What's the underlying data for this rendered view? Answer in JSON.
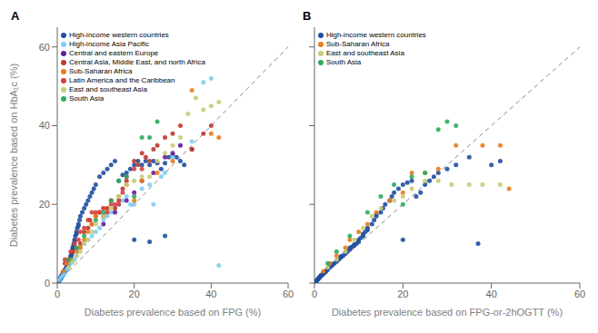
{
  "chart_data": [
    {
      "type": "scatter",
      "title": "A",
      "x_label": "Diabetes prevalence based on FPG (%)",
      "y_label": "Diabetes prevalence based on HbA₁c (%)",
      "xlim": [
        0,
        60
      ],
      "ylim": [
        0,
        65
      ],
      "xticks": [
        0,
        20,
        40,
        60
      ],
      "yticks": [
        0,
        20,
        40,
        60
      ],
      "legend": "upper left",
      "identity_line": {
        "x": [
          0,
          62
        ],
        "y": [
          0,
          62
        ],
        "color": "#888888",
        "line_style": "dashed"
      },
      "series": [
        {
          "name": "High-income western countries",
          "color": "#1f4fa0",
          "x": [
            0.3,
            0.4,
            0.5,
            0.5,
            0.6,
            0.6,
            0.7,
            0.7,
            0.8,
            0.8,
            0.9,
            0.9,
            1.0,
            1.0,
            1.0,
            1.1,
            1.1,
            1.2,
            1.2,
            1.3,
            1.3,
            1.4,
            1.4,
            1.5,
            1.5,
            1.5,
            1.6,
            1.6,
            1.7,
            1.7,
            1.8,
            1.8,
            1.9,
            2.0,
            2.0,
            2.0,
            2.1,
            2.1,
            2.2,
            2.2,
            2.3,
            2.3,
            2.4,
            2.4,
            2.5,
            2.5,
            2.6,
            2.6,
            2.7,
            2.8,
            2.8,
            2.9,
            3.0,
            3.0,
            3.0,
            3.1,
            3.2,
            3.2,
            3.3,
            3.4,
            3.5,
            3.5,
            3.6,
            3.7,
            3.8,
            3.9,
            4.0,
            4.0,
            4.2,
            4.3,
            4.5,
            4.5,
            4.7,
            5.0,
            5.0,
            5.2,
            5.5,
            5.5,
            5.8,
            6.0,
            6.5,
            7.0,
            7.5,
            8.0,
            8.5,
            9.0,
            9.5,
            10.0,
            11.0,
            12.0,
            13.0,
            14.0,
            15.0,
            16.0,
            17.0,
            18.0,
            19.0,
            20.0,
            21.0,
            22.0,
            23.0,
            24.0,
            25.0,
            26.0,
            27.0,
            28.0,
            29.0,
            30.0,
            31.0,
            32.0,
            33.0,
            24.0,
            20.0,
            28.0
          ],
          "y": [
            0.4,
            0.5,
            0.6,
            0.8,
            0.9,
            1.0,
            1.0,
            1.2,
            1.1,
            1.3,
            1.2,
            1.4,
            1.3,
            1.5,
            1.7,
            1.6,
            1.8,
            1.7,
            2.0,
            1.9,
            2.1,
            2.0,
            2.2,
            2.1,
            2.3,
            2.5,
            2.4,
            2.6,
            2.5,
            2.7,
            2.6,
            2.9,
            2.8,
            3.0,
            3.2,
            3.4,
            3.1,
            3.3,
            3.2,
            3.5,
            3.4,
            3.7,
            3.6,
            3.9,
            3.8,
            4.1,
            4.0,
            4.3,
            4.2,
            4.5,
            4.7,
            4.6,
            5.0,
            5.2,
            5.4,
            5.3,
            5.6,
            5.8,
            6.0,
            6.2,
            6.5,
            6.8,
            7.0,
            7.3,
            7.8,
            8.0,
            8.5,
            9.0,
            9.5,
            10.0,
            10.5,
            11.0,
            12.0,
            12.5,
            13.0,
            14.0,
            14.5,
            15.0,
            16.0,
            17.0,
            18.0,
            19.0,
            20.0,
            21.0,
            22.0,
            23.0,
            24.0,
            25.0,
            27.0,
            28.0,
            29.0,
            30.0,
            31.0,
            26.0,
            27.5,
            28.0,
            29.0,
            30.0,
            31.0,
            30.0,
            31.0,
            30.0,
            31.0,
            30.5,
            29.0,
            30.5,
            32.0,
            32.5,
            32.0,
            31.0,
            30.0,
            10.5,
            11.0,
            12.0
          ]
        },
        {
          "name": "High-income Asia Pacific",
          "color": "#7ecef4",
          "x": [
            0.5,
            1.0,
            1.5,
            2.0,
            2.5,
            3.0,
            3.5,
            4.0,
            4.5,
            5.0,
            5.5,
            6.0,
            7.0,
            8.0,
            9.0,
            10.0,
            11.0,
            12.0,
            13.0,
            14.0,
            15.0,
            16.0,
            17.0,
            18.0,
            19.0,
            20.0,
            22.0,
            24.0,
            25.0,
            27.0,
            28.0,
            30.0,
            32.0,
            35.0,
            38.0,
            40.0,
            42.0
          ],
          "y": [
            0.8,
            1.5,
            2.0,
            2.5,
            3.5,
            4.0,
            5.0,
            5.5,
            6.0,
            7.0,
            8.0,
            9.0,
            10.0,
            11.0,
            12.0,
            13.0,
            14.0,
            16.0,
            17.0,
            18.0,
            19.0,
            20.0,
            21.0,
            22.0,
            20.0,
            20.0,
            24.0,
            25.0,
            20.0,
            27.0,
            28.0,
            32.0,
            35.0,
            36.0,
            51.0,
            52.0,
            4.5
          ]
        },
        {
          "name": "Central and eastern Europe",
          "color": "#6a1a9a",
          "x": [
            12.0,
            15.0,
            18.0,
            20.0,
            22.0,
            25.0,
            28.0,
            30.0,
            32.0,
            35.0
          ],
          "y": [
            15.0,
            18.0,
            21.0,
            23.0,
            26.0,
            28.0,
            32.0,
            33.0,
            35.0,
            34.0
          ]
        },
        {
          "name": "Central Asia, Middle East, and north Africa",
          "color": "#c0392b",
          "x": [
            2.0,
            3.0,
            4.0,
            5.0,
            6.0,
            7.0,
            8.0,
            8.5,
            9.0,
            10.0,
            11.0,
            12.0,
            13.0,
            14.0,
            15.0,
            16.0,
            17.0,
            18.0,
            20.0,
            21.0,
            22.0,
            23.0,
            24.0,
            25.0,
            26.0,
            28.0,
            30.0,
            32.0,
            35.0,
            38.0,
            40.0
          ],
          "y": [
            5.0,
            6.0,
            8.0,
            9.0,
            10.0,
            13.0,
            14.0,
            16.0,
            15.0,
            17.0,
            18.0,
            17.0,
            19.0,
            21.0,
            19.0,
            21.0,
            24.0,
            26.0,
            31.0,
            30.0,
            33.0,
            32.0,
            31.0,
            34.0,
            35.0,
            37.0,
            38.0,
            40.0,
            34.0,
            38.0,
            40.0
          ]
        },
        {
          "name": "Sub-Saharan Africa",
          "color": "#e87c1e",
          "x": [
            1.5,
            2.5,
            3.5,
            5.0,
            6.0,
            7.0,
            8.0,
            9.0,
            10.0,
            12.0,
            14.0,
            16.0,
            18.0,
            20.0,
            22.0,
            26.0,
            30.0,
            35.0,
            40.0,
            42.0
          ],
          "y": [
            3.0,
            5.0,
            6.0,
            8.0,
            9.0,
            11.0,
            13.0,
            15.0,
            17.0,
            19.0,
            21.0,
            22.0,
            25.0,
            21.0,
            26.0,
            28.0,
            31.0,
            49.0,
            38.0,
            37.0
          ]
        },
        {
          "name": "Latin America and the Caribbean",
          "color": "#d44040",
          "x": [
            2.0,
            3.5,
            4.5,
            5.5,
            6.0,
            7.0,
            8.0,
            9.0,
            10.0,
            11.0,
            12.0,
            13.0,
            14.0,
            15.0,
            16.0,
            17.0,
            18.0,
            20.0,
            22.0
          ],
          "y": [
            6.0,
            8.0,
            10.0,
            11.0,
            13.0,
            14.0,
            16.0,
            18.0,
            18.0,
            18.0,
            19.0,
            18.0,
            20.0,
            20.0,
            20.0,
            23.0,
            27.0,
            29.0,
            29.0
          ]
        },
        {
          "name": "East and southeast Asia",
          "color": "#c8cc7a",
          "x": [
            3.0,
            4.0,
            5.0,
            6.0,
            7.0,
            8.0,
            9.0,
            10.0,
            12.0,
            14.0,
            16.0,
            18.0,
            20.0,
            22.0,
            24.0,
            26.0,
            28.0,
            30.0,
            32.0,
            34.0,
            36.0,
            38.0,
            40.0,
            42.0
          ],
          "y": [
            4.0,
            5.5,
            7.0,
            8.0,
            10.0,
            11.0,
            13.0,
            15.0,
            17.0,
            19.0,
            22.0,
            25.0,
            26.0,
            27.0,
            27.0,
            31.0,
            33.0,
            35.0,
            37.0,
            43.0,
            47.0,
            44.0,
            45.0,
            46.0
          ]
        },
        {
          "name": "South Asia",
          "color": "#2eab5e",
          "x": [
            3.0,
            5.0,
            7.0,
            10.0,
            12.0,
            14.0,
            16.0,
            18.0,
            20.0,
            22.0,
            24.0,
            26.0
          ],
          "y": [
            6.0,
            9.0,
            12.0,
            16.0,
            18.0,
            21.0,
            26.0,
            27.0,
            22.0,
            37.0,
            37.0,
            41.0
          ]
        }
      ]
    },
    {
      "type": "scatter",
      "title": "B",
      "x_label": "Diabetes prevalence based on FPG-or-2hOGTT (%)",
      "xlim": [
        0,
        60
      ],
      "ylim": [
        0,
        65
      ],
      "xticks": [
        0,
        20,
        40,
        60
      ],
      "yticks": [
        0,
        20,
        40,
        60
      ],
      "tick_labels": "x",
      "legend": "upper left",
      "identity_line": {
        "x": [
          0,
          62
        ],
        "y": [
          0,
          62
        ],
        "color": "#888888",
        "line_style": "dashed"
      },
      "series": [
        {
          "name": "High-income western countries",
          "color": "#1f4fa0",
          "x": [
            0.3,
            0.5,
            0.5,
            0.7,
            0.8,
            1.0,
            1.0,
            1.2,
            1.3,
            1.5,
            1.5,
            1.7,
            2.0,
            2.0,
            2.2,
            2.5,
            2.5,
            2.8,
            3.0,
            3.0,
            3.5,
            3.5,
            4.0,
            4.0,
            4.5,
            5.0,
            5.0,
            5.5,
            6.0,
            6.0,
            6.5,
            7.0,
            7.0,
            7.5,
            8.0,
            8.0,
            8.5,
            9.0,
            9.0,
            9.5,
            10.0,
            10.0,
            10.5,
            11.0,
            11.0,
            11.5,
            12.0,
            12.0,
            13.0,
            13.5,
            14.0,
            14.0,
            15.0,
            15.5,
            16.0,
            17.0,
            17.5,
            18.0,
            19.0,
            20.0,
            21.0,
            22.0,
            23.0,
            24.0,
            25.0,
            26.0,
            27.0,
            28.0,
            30.0,
            32.0,
            35.0,
            37.0,
            40.0,
            42.0,
            20.0
          ],
          "y": [
            0.4,
            0.5,
            0.7,
            0.9,
            1.0,
            1.2,
            1.4,
            1.5,
            1.7,
            1.8,
            2.0,
            2.1,
            2.3,
            2.5,
            2.6,
            2.8,
            3.0,
            3.2,
            3.5,
            3.7,
            4.0,
            4.2,
            4.5,
            4.8,
            5.0,
            5.5,
            5.8,
            6.0,
            6.5,
            6.8,
            7.0,
            7.5,
            7.8,
            8.0,
            8.5,
            9.0,
            9.2,
            9.5,
            9.8,
            10.0,
            10.5,
            11.0,
            11.5,
            12.0,
            12.5,
            13.0,
            13.5,
            14.0,
            15.0,
            16.0,
            17.0,
            17.5,
            18.0,
            19.0,
            20.0,
            21.0,
            22.0,
            23.0,
            24.0,
            25.0,
            25.5,
            26.0,
            22.0,
            23.0,
            25.0,
            26.0,
            27.0,
            28.0,
            29.0,
            30.0,
            32.0,
            10.0,
            30.0,
            31.0,
            11.0
          ]
        },
        {
          "name": "Sub-Saharan Africa",
          "color": "#e87c1e",
          "x": [
            2.0,
            3.5,
            5.0,
            7.0,
            8.0,
            10.0,
            12.0,
            14.0,
            17.0,
            20.0,
            22.0,
            25.0,
            28.0,
            32.0,
            38.0,
            42.0,
            44.0
          ],
          "y": [
            3.0,
            5.0,
            7.0,
            9.0,
            11.0,
            13.0,
            15.0,
            18.0,
            21.0,
            23.0,
            28.0,
            28.0,
            29.0,
            35.0,
            35.0,
            35.0,
            24.0
          ]
        },
        {
          "name": "East and southeast Asia",
          "color": "#c8cc7a",
          "x": [
            3.0,
            5.0,
            7.0,
            9.0,
            11.0,
            13.0,
            15.0,
            18.0,
            20.0,
            22.0,
            25.0,
            28.0,
            31.0,
            35.0,
            38.0,
            42.0
          ],
          "y": [
            4.0,
            6.0,
            8.0,
            11.0,
            14.0,
            17.0,
            19.0,
            21.0,
            22.0,
            24.0,
            26.0,
            26.0,
            25.0,
            25.0,
            25.0,
            25.0
          ]
        },
        {
          "name": "South Asia",
          "color": "#2eab5e",
          "x": [
            3.0,
            5.0,
            8.0,
            12.0,
            15.0,
            18.0,
            20.0,
            22.0,
            25.0,
            28.0,
            30.0,
            32.0
          ],
          "y": [
            5.0,
            8.0,
            12.0,
            18.0,
            22.0,
            25.0,
            20.0,
            27.0,
            28.0,
            39.0,
            41.0,
            40.0
          ]
        }
      ]
    }
  ]
}
